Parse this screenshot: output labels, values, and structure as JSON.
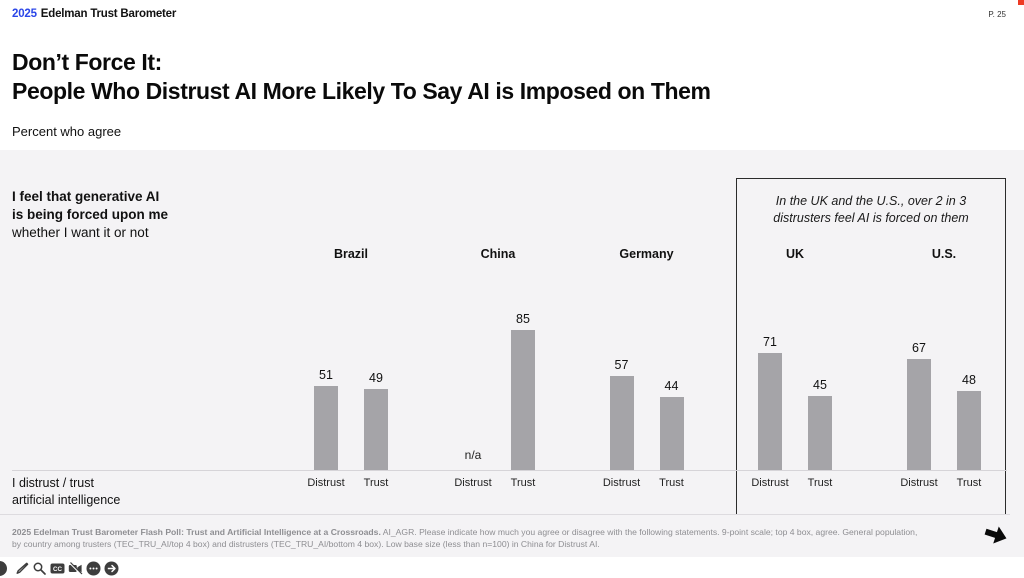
{
  "header": {
    "year": "2025",
    "brand": "Edelman Trust Barometer",
    "page_number": "P. 25"
  },
  "title": {
    "line1": "Don’t Force It:",
    "line2": "People Who Distrust AI More Likely To Say AI is Imposed on Them"
  },
  "subtitle": "Percent who agree",
  "statement": {
    "line1": "I feel that generative AI",
    "line2": "is being forced upon me",
    "line3": "whether I want it or not"
  },
  "callout": {
    "line1": "In the UK and the U.S., over 2 in 3",
    "line2": "distrusters feel AI is forced on them"
  },
  "axis_label": {
    "line1": "I distrust / trust",
    "line2": "artificial intelligence"
  },
  "chart_data": {
    "type": "bar",
    "title": "Percent who agree: I feel that generative AI is being forced upon me whether I want it or not",
    "categories": [
      "Brazil",
      "China",
      "Germany",
      "UK",
      "U.S."
    ],
    "series": [
      {
        "name": "Distrust",
        "values": [
          51,
          null,
          57,
          71,
          67
        ]
      },
      {
        "name": "Trust",
        "values": [
          49,
          85,
          44,
          45,
          48
        ]
      }
    ],
    "na_label": "n/a",
    "ylim": [
      0,
      100
    ],
    "grid": false,
    "legend": "none",
    "bar_color": "#a5a4a8",
    "highlighted_categories": [
      "UK",
      "U.S."
    ]
  },
  "footer": {
    "bold": "2025 Edelman Trust Barometer Flash Poll: Trust and Artificial Intelligence at a Crossroads.",
    "text": " AI_AGR. Please indicate how much you agree or disagree with the following statements. 9-point scale; top 4 box, agree. General population, by country among trusters (TEC_TRU_AI/top 4 box) and distrusters (TEC_TRU_AI/bottom 4 box). Low base size (less than n=100) in China for Distrust AI."
  },
  "colors": {
    "accent_blue": "#2b46e8",
    "bar_gray": "#a5a4a8",
    "slide_bg": "#f4f3f5",
    "corner_red": "#ee3a24"
  },
  "toolbar_icons": [
    "pencil-icon",
    "search-icon",
    "closed-captions-icon",
    "video-off-icon",
    "more-options-icon",
    "arrow-circle-icon"
  ]
}
